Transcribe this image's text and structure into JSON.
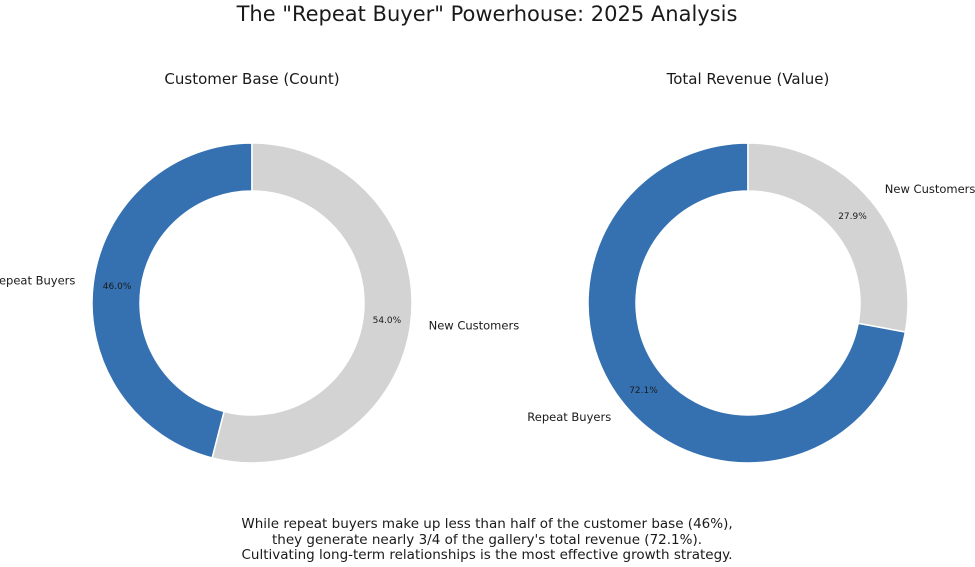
{
  "title": "The \"Repeat Buyer\" Powerhouse: 2025 Analysis",
  "chart_data": [
    {
      "type": "pie",
      "subtype": "donut",
      "title": "Customer Base (Count)",
      "categories": [
        "Repeat Buyers",
        "New Customers"
      ],
      "values": [
        46.0,
        54.0
      ],
      "value_labels": [
        "46.0%",
        "54.0%"
      ],
      "colors": [
        "#3571b1",
        "#d3d3d3"
      ],
      "start_angle": "top",
      "direction": "counterclockwise"
    },
    {
      "type": "pie",
      "subtype": "donut",
      "title": "Total Revenue (Value)",
      "categories": [
        "Repeat Buyers",
        "New Customers"
      ],
      "values": [
        72.1,
        27.9
      ],
      "value_labels": [
        "72.1%",
        "27.9%"
      ],
      "colors": [
        "#3571b1",
        "#d3d3d3"
      ],
      "start_angle": "top",
      "direction": "counterclockwise"
    }
  ],
  "caption": [
    "While repeat buyers make up less than half of the customer base (46%),",
    "they generate nearly 3/4 of the gallery's total revenue (72.1%).",
    "Cultivating long-term relationships is the most effective growth strategy."
  ]
}
